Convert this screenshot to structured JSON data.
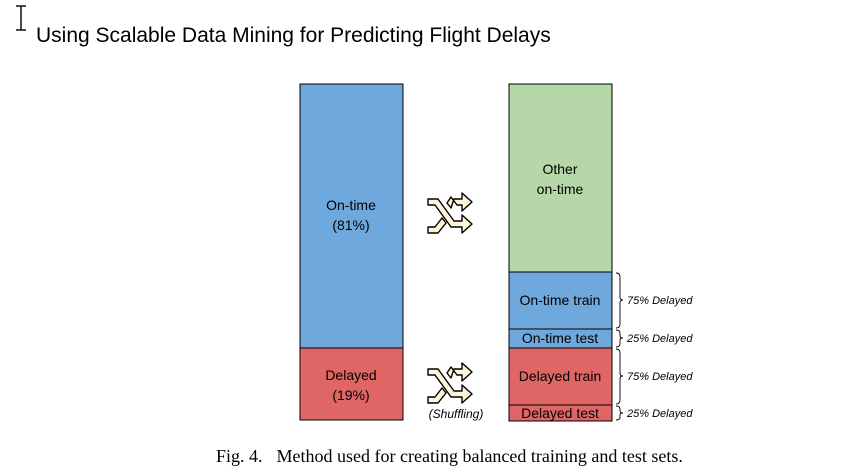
{
  "header": {
    "title": "Using Scalable Data Mining for Predicting Flight Delays"
  },
  "figure": {
    "left_bar": {
      "ontime_label": "On-time",
      "ontime_pct": "(81%)",
      "delayed_label": "Delayed",
      "delayed_pct": "(19%)"
    },
    "right_bar": {
      "other_line1": "Other",
      "other_line2": "on-time",
      "ontime_train": "On-time train",
      "ontime_test": "On-time test",
      "delayed_train": "Delayed train",
      "delayed_test": "Delayed test"
    },
    "annotations": {
      "ontime_train": "75% Delayed",
      "ontime_test": "25% Delayed",
      "delayed_train": "75% Delayed",
      "delayed_test": "25% Delayed"
    },
    "shuffle_label": "(Shuffling)",
    "colors": {
      "ontime": "#6fa8dc",
      "delayed": "#e06666",
      "other": "#b6d7a8",
      "shuffle_icon": "#fdf5d8"
    }
  },
  "caption": {
    "fig_number": "Fig. 4.",
    "text": "Method used for creating balanced training and test sets."
  }
}
